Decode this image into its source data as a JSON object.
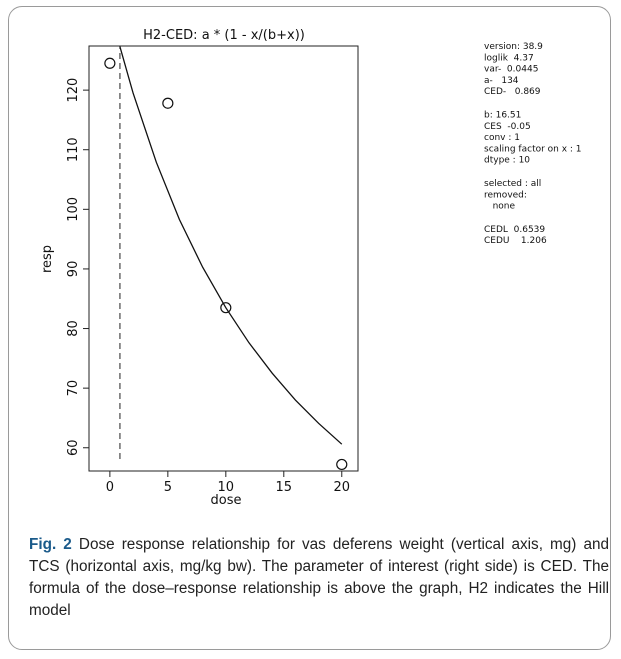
{
  "chart_data": {
    "type": "scatter",
    "title": "H2-CED: a * (1 - x/(b+x))",
    "x_label": "dose",
    "y_label": "resp",
    "x": [
      0,
      5,
      10,
      20
    ],
    "values": [
      124.5,
      117.8,
      83.5,
      57.2
    ],
    "curve": {
      "x": [
        0.869,
        2,
        4,
        6,
        8,
        10,
        12,
        14,
        16,
        18,
        20
      ],
      "values": [
        127.3,
        119.5,
        107.9,
        98.3,
        90.3,
        83.5,
        77.6,
        72.5,
        68.0,
        64.1,
        60.6
      ]
    },
    "vline_x": 0.869,
    "xlim": [
      -1.8,
      21.4
    ],
    "ylim": [
      56.1,
      127.4
    ],
    "xticks": [
      0,
      5,
      10,
      15,
      20
    ],
    "yticks": [
      60,
      70,
      80,
      90,
      100,
      110,
      120
    ],
    "annotations": [
      [
        "version: 38.9",
        "loglik  4.37",
        "var-  0.0445",
        "a-   134",
        "CED-   0.869"
      ],
      [
        "b: 16.51",
        "CES  -0.05",
        "conv : 1",
        "scaling factor on x : 1",
        "dtype : 10"
      ],
      [
        "selected : all",
        "removed:",
        "   none"
      ],
      [
        "CEDL  0.6539",
        "CEDU    1.206"
      ]
    ]
  },
  "caption": {
    "label": "Fig. 2",
    "text": "Dose response relationship for vas deferens weight (vertical axis, mg) and TCS (horizontal axis, mg/kg bw). The parameter of interest (right side) is CED. The formula of the dose–response relationship is above the graph, H2 indicates the Hill model"
  }
}
